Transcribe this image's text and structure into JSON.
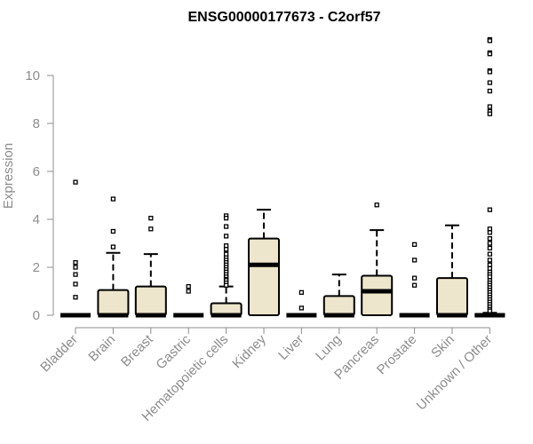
{
  "chart_data": {
    "type": "box",
    "title": "ENSG00000177673 - C2orf57",
    "ylabel": "Expression",
    "xlabel": "",
    "ylim": [
      0,
      11.5
    ],
    "yticks": [
      0,
      2,
      4,
      6,
      8,
      10
    ],
    "grid": false,
    "legend": "none",
    "box_color": "#ede6cc",
    "categories": [
      "Bladder",
      "Brain",
      "Breast",
      "Gastric",
      "Hematopoietic cells",
      "Kidney",
      "Liver",
      "Lung",
      "Pancreas",
      "Prostate",
      "Skin",
      "Unknown / Other"
    ],
    "boxes": [
      {
        "q1": 0,
        "median": 0,
        "q3": 0,
        "whisker_low": 0,
        "whisker_high": 0,
        "outliers": [
          5.55,
          2.2,
          2.0,
          1.7,
          1.3,
          0.75
        ]
      },
      {
        "q1": 0,
        "median": 0,
        "q3": 1.05,
        "whisker_low": 0,
        "whisker_high": 2.6,
        "outliers": [
          4.85,
          3.5,
          2.85
        ]
      },
      {
        "q1": 0,
        "median": 0,
        "q3": 1.2,
        "whisker_low": 0,
        "whisker_high": 2.55,
        "outliers": [
          4.05,
          3.6
        ]
      },
      {
        "q1": 0,
        "median": 0,
        "q3": 0,
        "whisker_low": 0,
        "whisker_high": 0,
        "outliers": [
          1.2,
          1.0
        ]
      },
      {
        "q1": 0,
        "median": 0,
        "q3": 0.5,
        "whisker_low": 0,
        "whisker_high": 1.2,
        "outliers": [
          4.15,
          4.05,
          3.7,
          3.3,
          2.9,
          2.75,
          2.55,
          2.4,
          2.3,
          2.2,
          2.1,
          2.0,
          1.9,
          1.8,
          1.7,
          1.6,
          1.5,
          1.45,
          1.35,
          1.25
        ]
      },
      {
        "q1": 0,
        "median": 2.1,
        "q3": 3.2,
        "whisker_low": 0,
        "whisker_high": 4.4,
        "outliers": []
      },
      {
        "q1": 0,
        "median": 0,
        "q3": 0,
        "whisker_low": 0,
        "whisker_high": 0,
        "outliers": [
          0.95,
          0.3
        ]
      },
      {
        "q1": 0,
        "median": 0,
        "q3": 0.8,
        "whisker_low": 0,
        "whisker_high": 1.7,
        "outliers": []
      },
      {
        "q1": 0,
        "median": 1.0,
        "q3": 1.65,
        "whisker_low": 0,
        "whisker_high": 3.55,
        "outliers": [
          4.6
        ]
      },
      {
        "q1": 0,
        "median": 0,
        "q3": 0,
        "whisker_low": 0,
        "whisker_high": 0,
        "outliers": [
          2.95,
          2.3,
          1.55,
          1.25
        ]
      },
      {
        "q1": 0,
        "median": 0,
        "q3": 1.55,
        "whisker_low": 0,
        "whisker_high": 3.75,
        "outliers": []
      },
      {
        "q1": 0,
        "median": 0,
        "q3": 0.05,
        "whisker_low": 0,
        "whisker_high": 0.1,
        "outliers": [
          11.5,
          11.45,
          10.95,
          10.9,
          10.2,
          10.15,
          9.7,
          9.35,
          8.7,
          8.5,
          8.4,
          4.4,
          3.6,
          3.45,
          3.2,
          3.0,
          2.8,
          2.55,
          2.3,
          2.1,
          1.95,
          1.8,
          1.7,
          1.6,
          1.45,
          1.35,
          1.25,
          1.15,
          1.05,
          0.95,
          0.85,
          0.75,
          0.65,
          0.55,
          0.45,
          0.35,
          0.25,
          0.18
        ]
      }
    ]
  }
}
